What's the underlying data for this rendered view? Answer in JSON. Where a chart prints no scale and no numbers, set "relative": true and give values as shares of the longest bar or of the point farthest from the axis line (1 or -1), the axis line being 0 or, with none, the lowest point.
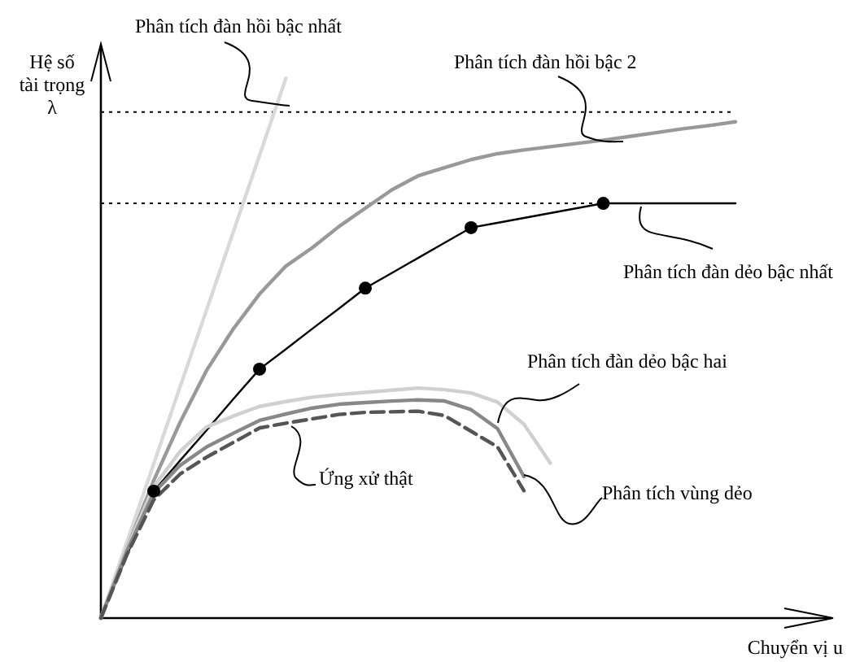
{
  "chart_data": {
    "type": "line",
    "relative": true,
    "xlabel": "Chuyển vị u",
    "ylabel": "Hệ số tài trọng λ",
    "categories": [
      null,
      null,
      null,
      null,
      null,
      null,
      null,
      null,
      null,
      null,
      null,
      null,
      null,
      null,
      null,
      null,
      null,
      null,
      null,
      null,
      null,
      null,
      null,
      null,
      null
    ],
    "ref_lines": [
      {
        "axis": "y",
        "value": 0.937,
        "line_style": "dotted",
        "color": "#000000"
      },
      {
        "axis": "y",
        "value": 0.768,
        "line_style": "dotted",
        "color": "#000000"
      }
    ],
    "series": [
      {
        "name": "Phân tích đàn hồi bậc nhất",
        "color": "#d9d9d9",
        "values": [
          0,
          0.143,
          0.286,
          0.429,
          0.571,
          0.714,
          0.857,
          1,
          null,
          null,
          null,
          null,
          null,
          null,
          null,
          null,
          null,
          null,
          null,
          null,
          null,
          null,
          null,
          null,
          null
        ]
      },
      {
        "name": "Phân tích đàn hồi bậc 2",
        "color": "#999999",
        "values": [
          0,
          0.131,
          0.255,
          0.363,
          0.459,
          0.535,
          0.6,
          0.652,
          0.686,
          0.725,
          0.759,
          0.793,
          0.819,
          0.834,
          0.849,
          0.86,
          0.867,
          0.873,
          0.879,
          0.885,
          0.892,
          0.899,
          0.906,
          0.912,
          0.919
        ]
      },
      {
        "name": "Phân tích đàn dẻo bậc nhất",
        "color": "#000000",
        "values": [
          0,
          0.118,
          0.235,
          0.292,
          0.348,
          0.405,
          0.461,
          0.498,
          0.536,
          0.573,
          0.611,
          0.639,
          0.667,
          0.695,
          0.723,
          0.732,
          0.741,
          0.75,
          0.759,
          0.768,
          0.768,
          0.768,
          0.768,
          0.768,
          0.768
        ]
      },
      {
        "name": "Phân tích đàn dẻo bậc hai",
        "color": "#d0d0d0",
        "values": [
          0,
          0.131,
          0.243,
          0.309,
          0.354,
          0.374,
          0.392,
          0.401,
          0.409,
          0.414,
          0.418,
          0.422,
          0.426,
          0.423,
          0.417,
          0.4,
          0.359,
          0.287,
          null,
          null,
          null,
          null,
          null,
          null,
          null
        ]
      },
      {
        "name": "Phân tích vùng dẻo",
        "color": "#888888",
        "values": [
          0,
          0.126,
          0.232,
          0.283,
          0.317,
          0.342,
          0.366,
          0.378,
          0.389,
          0.396,
          0.399,
          0.402,
          0.404,
          0.402,
          0.386,
          0.351,
          0.262,
          null,
          null,
          null,
          null,
          null,
          null,
          null,
          null
        ]
      },
      {
        "name": "Ứng xử thật",
        "color": "#555555",
        "line_style": "dashed",
        "values": [
          0,
          0.119,
          0.219,
          0.267,
          0.298,
          0.325,
          0.352,
          0.361,
          0.369,
          0.377,
          0.381,
          0.382,
          0.383,
          0.375,
          0.346,
          0.317,
          0.236,
          null,
          null,
          null,
          null,
          null,
          null,
          null,
          null
        ]
      }
    ]
  }
}
